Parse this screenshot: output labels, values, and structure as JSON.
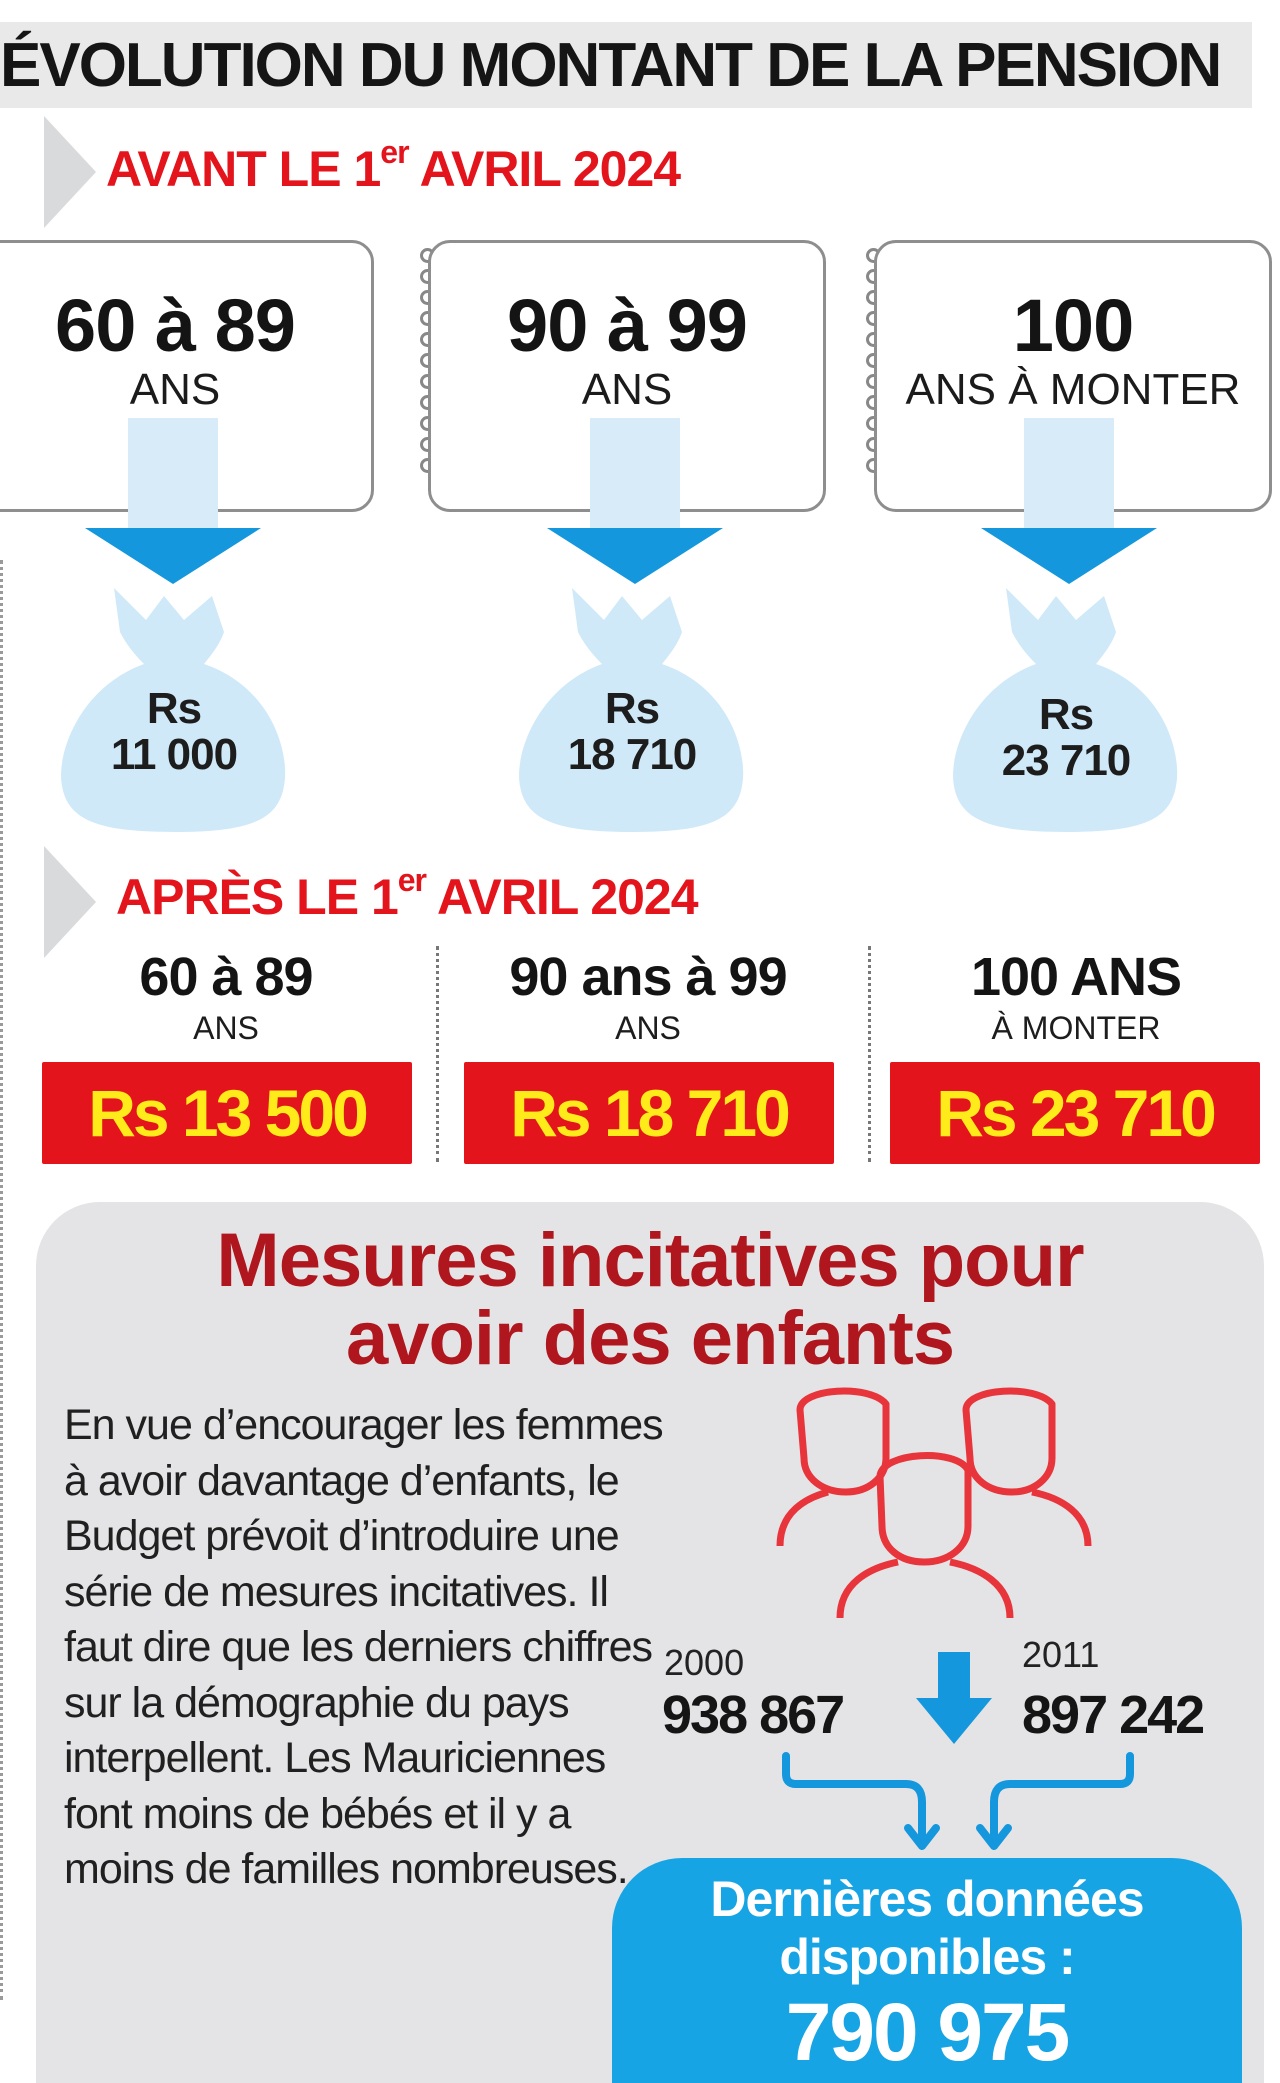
{
  "title": "ÉVOLUTION DU MONTANT DE LA PENSION",
  "before": {
    "label_prefix": "AVANT LE 1",
    "label_sup": "er",
    "label_suffix": " AVRIL 2024",
    "groups": [
      {
        "age": "60 à 89",
        "unit": "ANS",
        "currency": "Rs",
        "amount": "11 000"
      },
      {
        "age": "90 à 99",
        "unit": "ANS",
        "currency": "Rs",
        "amount": "18 710"
      },
      {
        "age": "100",
        "unit": "ANS À MONTER",
        "currency": "Rs",
        "amount": "23 710"
      }
    ]
  },
  "after": {
    "label_prefix": "APRÈS LE 1",
    "label_sup": "er",
    "label_suffix": " AVRIL 2024",
    "groups": [
      {
        "age": "60 à 89",
        "unit": "ANS",
        "amount": "Rs 13 500"
      },
      {
        "age": "90 ans à 99",
        "unit": "ANS",
        "amount": "Rs 18 710"
      },
      {
        "age": "100 ANS",
        "unit": "À MONTER",
        "amount": "Rs 23 710"
      }
    ]
  },
  "incentives": {
    "title_line1": "Mesures incitatives pour",
    "title_line2": "avoir des enfants",
    "body": "En vue d’encourager les femmes à avoir davantage d’enfants, le Budget prévoit d’introduire une série de mesures incitatives. Il faut dire que les derniers chiffres sur la démographie du pays interpellent. Les Mauriciennes font moins de bébés et il y a moins de familles nombreuses.",
    "year_a": {
      "label": "2000",
      "value": "938 867"
    },
    "year_b": {
      "label": "2011",
      "value": "897 242"
    },
    "latest_label_line1": "Dernières données",
    "latest_label_line2": "disponibles :",
    "latest_value": "790 975"
  },
  "colors": {
    "accent_red": "#e3141b",
    "dark_red": "#b0161e",
    "price_yellow": "#ffeb19",
    "blue": "#1497dc",
    "light_blue": "#cde9f8",
    "panel_grey": "#e4e4e6"
  }
}
